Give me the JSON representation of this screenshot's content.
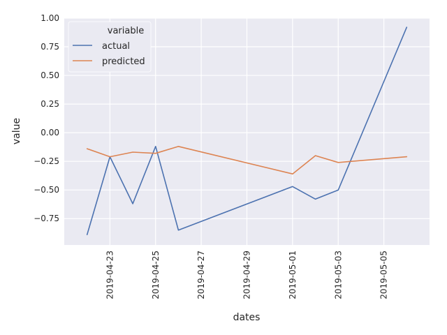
{
  "chart_data": {
    "type": "line",
    "xlabel": "dates",
    "ylabel": "value",
    "x_is_date": true,
    "xlim": [
      "2019-04-21",
      "2019-05-07"
    ],
    "ylim": [
      -0.98,
      1.0
    ],
    "x_ticks": [
      "2019-04-23",
      "2019-04-25",
      "2019-04-27",
      "2019-04-29",
      "2019-05-01",
      "2019-05-03",
      "2019-05-05"
    ],
    "y_ticks": [
      -0.75,
      -0.5,
      -0.25,
      0.0,
      0.25,
      0.5,
      0.75,
      1.0
    ],
    "y_tick_labels": [
      "−0.75",
      "−0.50",
      "−0.25",
      "0.00",
      "0.25",
      "0.50",
      "0.75",
      "1.00"
    ],
    "grid": true,
    "legend": {
      "title": "variable",
      "placement": "top-left"
    },
    "x": [
      "2019-04-22",
      "2019-04-23",
      "2019-04-24",
      "2019-04-25",
      "2019-04-26",
      "2019-05-01",
      "2019-05-02",
      "2019-05-03",
      "2019-05-06"
    ],
    "series": [
      {
        "name": "actual",
        "color": "#4c72b0",
        "values": [
          -0.89,
          -0.21,
          -0.62,
          -0.12,
          -0.85,
          -0.47,
          -0.58,
          -0.5,
          0.92
        ]
      },
      {
        "name": "predicted",
        "color": "#dd8452",
        "values": [
          -0.14,
          -0.21,
          -0.17,
          -0.18,
          -0.12,
          -0.36,
          -0.2,
          -0.26,
          -0.21
        ]
      }
    ]
  }
}
